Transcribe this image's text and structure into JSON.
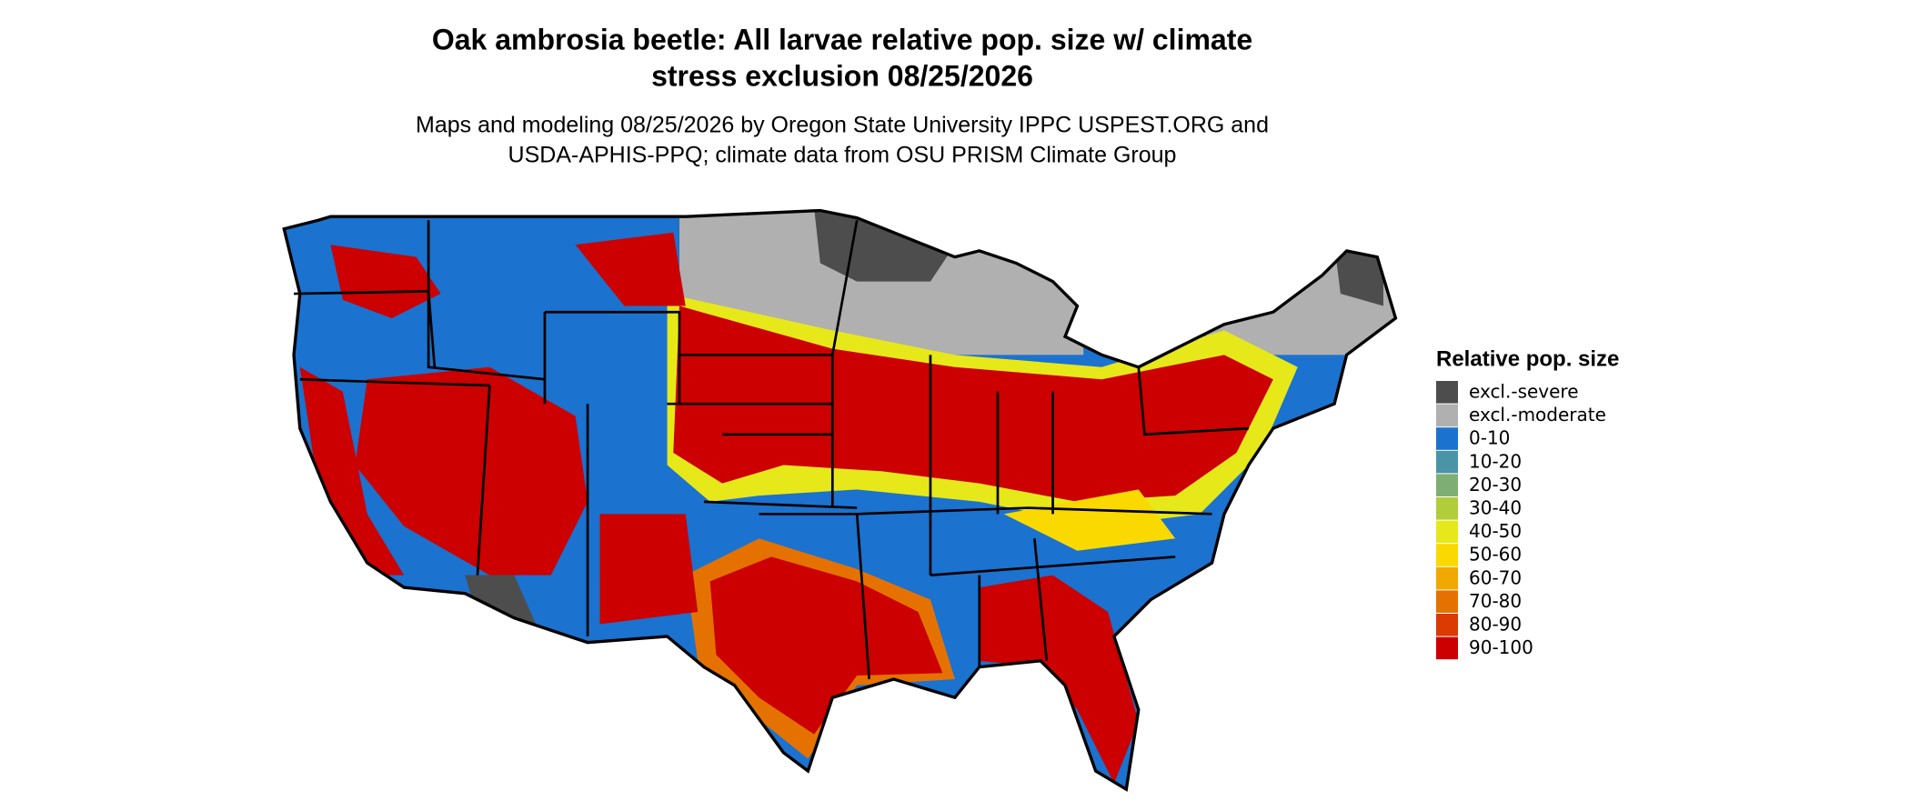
{
  "title": [
    "Oak ambrosia beetle: All larvae relative pop. size w/ climate",
    "stress exclusion 08/25/2026"
  ],
  "subtitle": [
    "Maps and modeling 08/25/2026 by Oregon State University IPPC USPEST.ORG and",
    "USDA-APHIS-PPQ; climate data from OSU PRISM Climate Group"
  ],
  "legend": {
    "title": "Relative pop. size",
    "items": [
      {
        "label": "excl.-severe",
        "color": "#4d4d4d"
      },
      {
        "label": "excl.-moderate",
        "color": "#b0b0b0"
      },
      {
        "label": "0-10",
        "color": "#1b72cf"
      },
      {
        "label": "10-20",
        "color": "#4a94a8"
      },
      {
        "label": "20-30",
        "color": "#7fae74"
      },
      {
        "label": "30-40",
        "color": "#b2cd3c"
      },
      {
        "label": "40-50",
        "color": "#e6e81a"
      },
      {
        "label": "50-60",
        "color": "#f9d900"
      },
      {
        "label": "60-70",
        "color": "#f1a800"
      },
      {
        "label": "70-80",
        "color": "#e57200"
      },
      {
        "label": "80-90",
        "color": "#db3a00"
      },
      {
        "label": "90-100",
        "color": "#cc0000"
      }
    ]
  }
}
